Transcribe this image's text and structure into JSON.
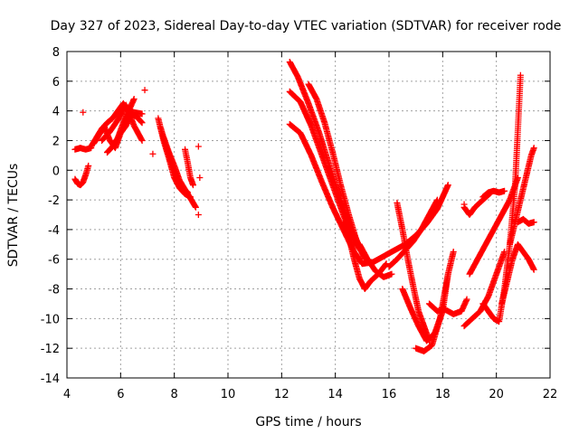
{
  "chart_data": {
    "type": "scatter",
    "title": "Day 327 of 2023, Sidereal Day-to-day VTEC variation (SDTVAR) for receiver rode",
    "xlabel": "GPS time / hours",
    "ylabel": "SDTVAR / TECUs",
    "xlim": [
      4,
      22
    ],
    "ylim": [
      -14,
      8
    ],
    "xticks": [
      4,
      6,
      8,
      10,
      12,
      14,
      16,
      18,
      20,
      22
    ],
    "yticks": [
      -14,
      -12,
      -10,
      -8,
      -6,
      -4,
      -2,
      0,
      2,
      4,
      6,
      8
    ],
    "grid": true,
    "marker": "+",
    "color": "#ff0000",
    "series": [
      {
        "name": "arc1",
        "x": [
          4.3,
          4.4,
          4.5,
          4.6,
          4.7,
          4.8
        ],
        "y": [
          -0.6,
          -0.9,
          -1.0,
          -0.8,
          -0.3,
          0.3
        ]
      },
      {
        "name": "arc2",
        "x": [
          4.3,
          4.5,
          4.7,
          4.9
        ],
        "y": [
          1.4,
          1.5,
          1.4,
          1.5
        ]
      },
      {
        "name": "arc3",
        "x": [
          4.9,
          5.1,
          5.3,
          5.5,
          5.7,
          5.9,
          6.1,
          6.3,
          6.5,
          6.8
        ],
        "y": [
          1.6,
          2.2,
          2.8,
          3.2,
          3.5,
          4.0,
          4.5,
          4.0,
          3.9,
          3.8
        ]
      },
      {
        "name": "arc4",
        "x": [
          5.0,
          5.2,
          5.4,
          5.6,
          5.8,
          6.0,
          6.2,
          6.4,
          6.6,
          6.8
        ],
        "y": [
          1.8,
          2.4,
          2.9,
          2.0,
          1.5,
          2.5,
          3.0,
          3.8,
          3.6,
          3.2
        ]
      },
      {
        "name": "arc5",
        "x": [
          5.5,
          5.7,
          5.9,
          6.1,
          6.3,
          6.5
        ],
        "y": [
          1.2,
          1.6,
          2.2,
          3.2,
          4.0,
          4.8
        ]
      },
      {
        "name": "arc6",
        "x": [
          5.3,
          5.6,
          5.9,
          6.2,
          6.5,
          6.8
        ],
        "y": [
          2.0,
          2.6,
          3.4,
          4.4,
          3.0,
          2.0
        ]
      },
      {
        "name": "arc7",
        "x": [
          7.4,
          7.6,
          7.8,
          8.0,
          8.2,
          8.4,
          8.6
        ],
        "y": [
          3.5,
          2.0,
          0.8,
          -0.5,
          -1.2,
          -1.6,
          -1.8
        ]
      },
      {
        "name": "arc8",
        "x": [
          7.5,
          7.7,
          7.9,
          8.1,
          8.3,
          8.5
        ],
        "y": [
          2.8,
          1.6,
          0.5,
          -0.6,
          -1.2,
          -1.5
        ]
      },
      {
        "name": "arc9",
        "x": [
          7.6,
          7.8,
          8.0,
          8.2,
          8.4,
          8.6,
          8.8
        ],
        "y": [
          2.2,
          1.2,
          0.3,
          -0.7,
          -1.3,
          -1.9,
          -2.5
        ]
      },
      {
        "name": "arc10",
        "x": [
          8.4,
          8.5,
          8.6,
          8.7
        ],
        "y": [
          1.4,
          0.5,
          -0.5,
          -1.0
        ]
      },
      {
        "name": "arc11",
        "x": [
          12.3,
          12.6,
          13.0,
          13.4,
          13.8,
          14.2,
          14.6,
          15.0
        ],
        "y": [
          7.3,
          6.3,
          4.5,
          2.5,
          0.2,
          -2.0,
          -4.0,
          -5.5
        ]
      },
      {
        "name": "arc12",
        "x": [
          12.3,
          12.7,
          13.1,
          13.5,
          13.9,
          14.3,
          14.7,
          15.1
        ],
        "y": [
          5.3,
          4.6,
          3.0,
          1.0,
          -1.0,
          -3.0,
          -4.8,
          -5.8
        ]
      },
      {
        "name": "arc13",
        "x": [
          12.3,
          12.7,
          13.1,
          13.5,
          13.9,
          14.3,
          14.7,
          15.0
        ],
        "y": [
          3.1,
          2.5,
          1.0,
          -0.8,
          -2.5,
          -4.0,
          -5.5,
          -6.3
        ]
      },
      {
        "name": "arc14",
        "x": [
          13.0,
          13.3,
          13.6,
          13.9,
          14.2,
          14.5,
          14.8,
          15.1
        ],
        "y": [
          5.8,
          4.8,
          3.2,
          1.2,
          -1.0,
          -3.0,
          -4.8,
          -6.0
        ]
      },
      {
        "name": "arc15",
        "x": [
          14.3,
          14.5,
          14.7,
          14.9,
          15.1,
          15.3,
          15.6,
          15.9
        ],
        "y": [
          -3.5,
          -4.5,
          -6.0,
          -7.3,
          -8.0,
          -7.5,
          -7.0,
          -6.3
        ]
      },
      {
        "name": "arc16",
        "x": [
          14.9,
          15.2,
          15.5,
          15.8,
          16.1
        ],
        "y": [
          -5.0,
          -6.0,
          -6.8,
          -7.2,
          -7.0
        ]
      },
      {
        "name": "arc17",
        "x": [
          15.0,
          15.4,
          15.8,
          16.2,
          16.6,
          17.0,
          17.4,
          17.8,
          18.2
        ],
        "y": [
          -6.3,
          -6.2,
          -5.8,
          -5.4,
          -5.0,
          -4.4,
          -3.6,
          -2.6,
          -1.0
        ]
      },
      {
        "name": "arc18",
        "x": [
          16.3,
          16.5,
          16.7,
          16.9,
          17.1,
          17.3,
          17.5
        ],
        "y": [
          -2.2,
          -4.0,
          -6.0,
          -7.8,
          -9.5,
          -10.5,
          -11.5
        ]
      },
      {
        "name": "arc19",
        "x": [
          16.0,
          16.3,
          16.6,
          16.9,
          17.2,
          17.5,
          17.8
        ],
        "y": [
          -6.5,
          -6.0,
          -5.4,
          -4.8,
          -4.0,
          -3.0,
          -2.0
        ]
      },
      {
        "name": "arc20",
        "x": [
          16.5,
          16.8,
          17.1,
          17.4,
          17.7,
          18.0,
          18.2
        ],
        "y": [
          -8.0,
          -9.3,
          -10.5,
          -11.5,
          -11.0,
          -9.5,
          -7.0
        ]
      },
      {
        "name": "arc21",
        "x": [
          17.0,
          17.3,
          17.6,
          17.9,
          18.2,
          18.4
        ],
        "y": [
          -12.0,
          -12.2,
          -11.8,
          -10.0,
          -7.0,
          -5.5
        ]
      },
      {
        "name": "arc22",
        "x": [
          17.5,
          17.8,
          18.1,
          18.4,
          18.7,
          18.9
        ],
        "y": [
          -9.0,
          -9.5,
          -9.4,
          -9.7,
          -9.5,
          -8.7
        ]
      },
      {
        "name": "arc23",
        "x": [
          18.8,
          19.0,
          19.2,
          19.5,
          19.8
        ],
        "y": [
          -2.5,
          -3.0,
          -2.5,
          -2.0,
          -1.5
        ]
      },
      {
        "name": "arc24",
        "x": [
          19.5,
          19.7,
          19.9,
          20.1,
          20.3
        ],
        "y": [
          -1.8,
          -1.5,
          -1.4,
          -1.5,
          -1.4
        ]
      },
      {
        "name": "arc25",
        "x": [
          19.0,
          19.3,
          19.6,
          19.9,
          20.2,
          20.5,
          20.8
        ],
        "y": [
          -7.0,
          -6.0,
          -5.0,
          -4.0,
          -3.0,
          -2.0,
          -0.5
        ]
      },
      {
        "name": "arc26",
        "x": [
          18.8,
          19.1,
          19.4,
          19.7,
          20.0,
          20.3
        ],
        "y": [
          -10.5,
          -10.0,
          -9.5,
          -8.5,
          -7.0,
          -5.5
        ]
      },
      {
        "name": "arc27",
        "x": [
          19.5,
          19.7,
          19.9,
          20.1,
          20.3,
          20.5,
          20.7,
          20.9
        ],
        "y": [
          -9.0,
          -9.5,
          -10.0,
          -10.2,
          -8.0,
          -5.0,
          -1.0,
          6.4
        ]
      },
      {
        "name": "arc28",
        "x": [
          20.2,
          20.4,
          20.6,
          20.8,
          21.0,
          21.2,
          21.4
        ],
        "y": [
          -9.0,
          -7.5,
          -6.0,
          -5.0,
          -5.5,
          -6.0,
          -6.7
        ]
      },
      {
        "name": "arc29",
        "x": [
          20.5,
          20.7,
          20.9,
          21.1,
          21.3,
          21.4
        ],
        "y": [
          -5.0,
          -3.5,
          -2.0,
          -0.5,
          1.0,
          1.5
        ]
      },
      {
        "name": "arc30",
        "x": [
          20.8,
          21.0,
          21.2,
          21.4
        ],
        "y": [
          -3.5,
          -3.3,
          -3.6,
          -3.5
        ]
      }
    ],
    "outliers": {
      "x": [
        4.6,
        6.9,
        7.2,
        8.9,
        8.95,
        8.9,
        18.8
      ],
      "y": [
        3.9,
        5.4,
        1.1,
        1.6,
        -0.5,
        -3.0,
        -2.3
      ]
    }
  }
}
